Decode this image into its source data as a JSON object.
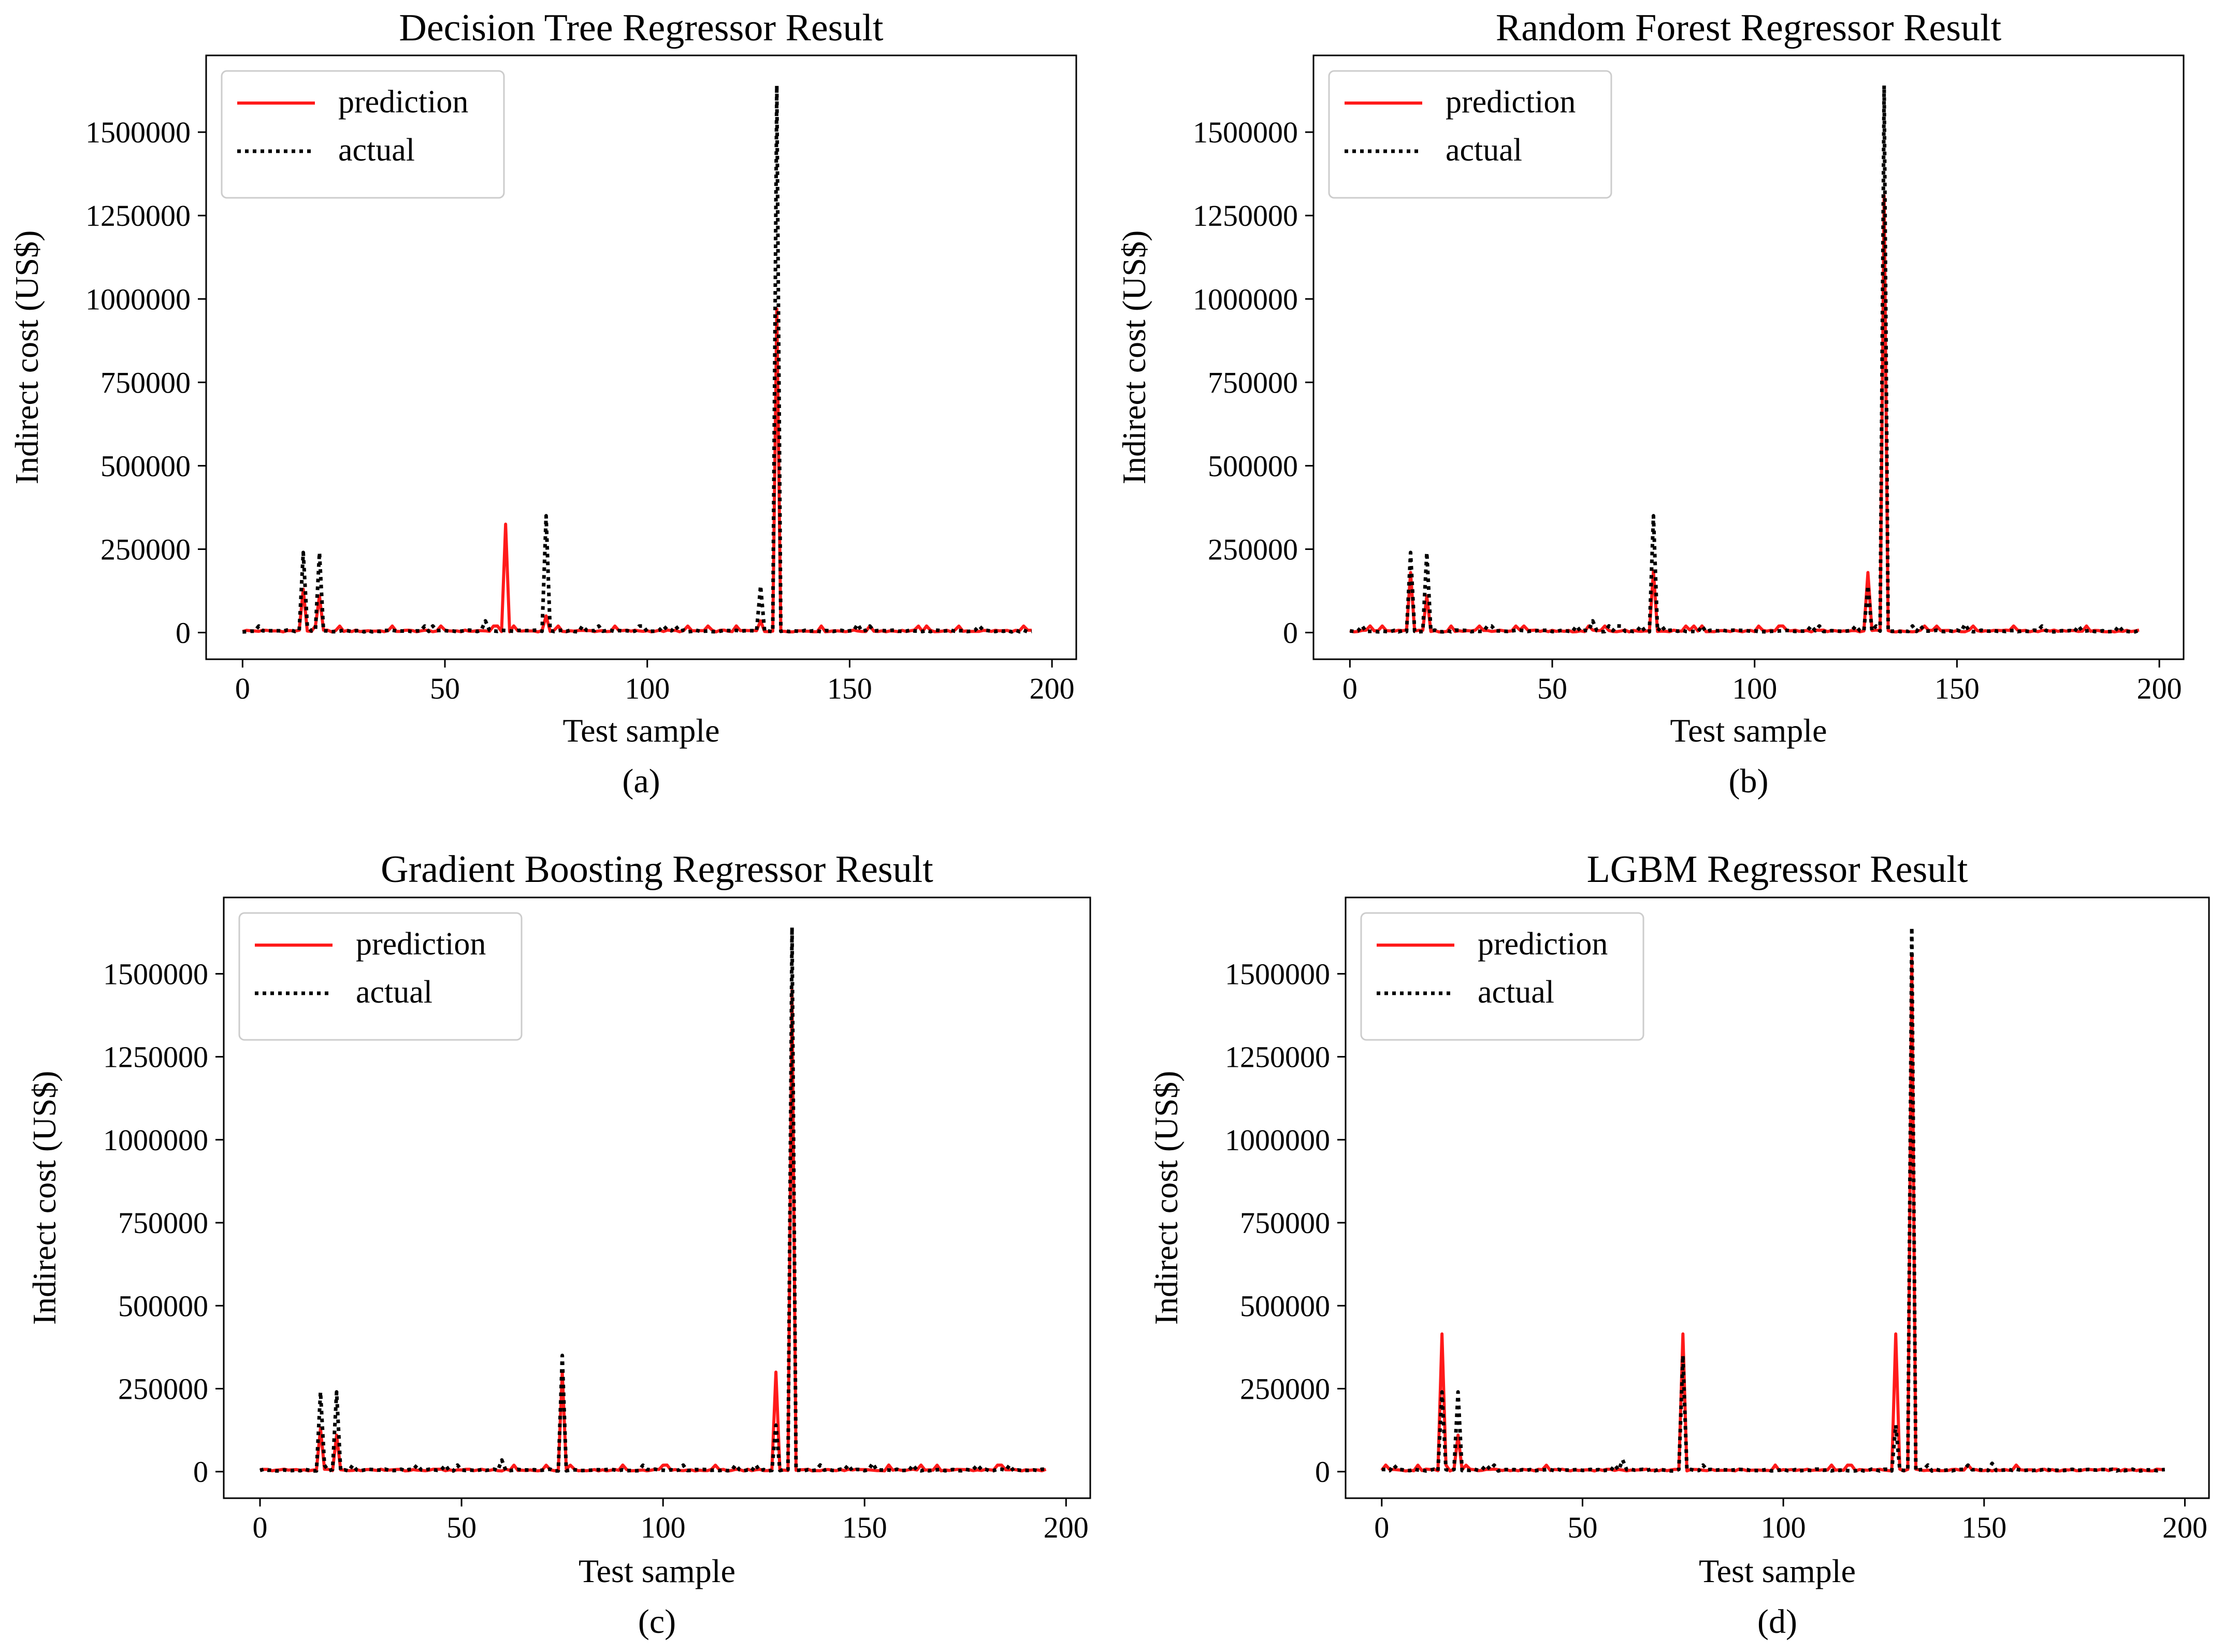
{
  "figure": {
    "panels_order": [
      "a",
      "b",
      "c",
      "d"
    ]
  },
  "chart_data": [
    {
      "panel": "(a)",
      "type": "line",
      "title": "Decision Tree Regressor Result",
      "xlabel": "Test sample",
      "ylabel": "Indirect cost (US$)",
      "xlim": [
        -9,
        206
      ],
      "ylim": [
        -80000,
        1730000
      ],
      "xticks": [
        0,
        50,
        100,
        150,
        200
      ],
      "yticks": [
        0,
        250000,
        500000,
        750000,
        1000000,
        1250000,
        1500000
      ],
      "legend": {
        "position": "top-left",
        "entries": [
          "prediction",
          "actual"
        ]
      },
      "colors": {
        "prediction": "#ff1a1a",
        "actual": "#000000"
      },
      "series": [
        {
          "name": "prediction",
          "color": "#ff1a1a",
          "style": "solid",
          "peaks": [
            [
              15,
              130000
            ],
            [
              19,
              110000
            ],
            [
              65,
              325000
            ],
            [
              75,
              50000
            ],
            [
              128,
              35000
            ],
            [
              132,
              970000
            ]
          ]
        },
        {
          "name": "actual",
          "color": "#000000",
          "style": "dotted",
          "peaks": [
            [
              15,
              240000
            ],
            [
              19,
              240000
            ],
            [
              60,
              35000
            ],
            [
              75,
              350000
            ],
            [
              128,
              140000
            ],
            [
              132,
              1640000
            ],
            [
              152,
              25000
            ]
          ]
        }
      ]
    },
    {
      "panel": "(b)",
      "type": "line",
      "title": "Random Forest Regressor Result",
      "xlabel": "Test sample",
      "ylabel": "Indirect cost (US$)",
      "xlim": [
        -9,
        206
      ],
      "ylim": [
        -80000,
        1730000
      ],
      "xticks": [
        0,
        50,
        100,
        150,
        200
      ],
      "yticks": [
        0,
        250000,
        500000,
        750000,
        1000000,
        1250000,
        1500000
      ],
      "legend": {
        "position": "top-left",
        "entries": [
          "prediction",
          "actual"
        ]
      },
      "colors": {
        "prediction": "#ff1a1a",
        "actual": "#000000"
      },
      "series": [
        {
          "name": "prediction",
          "color": "#ff1a1a",
          "style": "solid",
          "peaks": [
            [
              15,
              180000
            ],
            [
              19,
              110000
            ],
            [
              75,
              185000
            ],
            [
              128,
              180000
            ],
            [
              132,
              1310000
            ]
          ]
        },
        {
          "name": "actual",
          "color": "#000000",
          "style": "dotted",
          "peaks": [
            [
              15,
              240000
            ],
            [
              19,
              240000
            ],
            [
              60,
              35000
            ],
            [
              75,
              350000
            ],
            [
              128,
              140000
            ],
            [
              132,
              1640000
            ],
            [
              152,
              25000
            ]
          ]
        }
      ]
    },
    {
      "panel": "(c)",
      "type": "line",
      "title": "Gradient Boosting Regressor Result",
      "xlabel": "Test sample",
      "ylabel": "Indirect cost (US$)",
      "xlim": [
        -9,
        206
      ],
      "ylim": [
        -80000,
        1730000
      ],
      "xticks": [
        0,
        50,
        100,
        150,
        200
      ],
      "yticks": [
        0,
        250000,
        500000,
        750000,
        1000000,
        1250000,
        1500000
      ],
      "legend": {
        "position": "top-left",
        "entries": [
          "prediction",
          "actual"
        ]
      },
      "colors": {
        "prediction": "#ff1a1a",
        "actual": "#000000"
      },
      "series": [
        {
          "name": "prediction",
          "color": "#ff1a1a",
          "style": "solid",
          "peaks": [
            [
              15,
              130000
            ],
            [
              19,
              110000
            ],
            [
              75,
              300000
            ],
            [
              128,
              300000
            ],
            [
              132,
              1450000
            ]
          ]
        },
        {
          "name": "actual",
          "color": "#000000",
          "style": "dotted",
          "peaks": [
            [
              15,
              240000
            ],
            [
              19,
              240000
            ],
            [
              60,
              35000
            ],
            [
              75,
              350000
            ],
            [
              128,
              140000
            ],
            [
              132,
              1640000
            ],
            [
              152,
              25000
            ]
          ]
        }
      ]
    },
    {
      "panel": "(d)",
      "type": "line",
      "title": "LGBM Regressor Result",
      "xlabel": "Test sample",
      "ylabel": "Indirect cost (US$)",
      "xlim": [
        -9,
        206
      ],
      "ylim": [
        -80000,
        1730000
      ],
      "xticks": [
        0,
        50,
        100,
        150,
        200
      ],
      "yticks": [
        0,
        250000,
        500000,
        750000,
        1000000,
        1250000,
        1500000
      ],
      "legend": {
        "position": "top-left",
        "entries": [
          "prediction",
          "actual"
        ]
      },
      "colors": {
        "prediction": "#ff1a1a",
        "actual": "#000000"
      },
      "series": [
        {
          "name": "prediction",
          "color": "#ff1a1a",
          "style": "solid",
          "peaks": [
            [
              15,
              415000
            ],
            [
              19,
              110000
            ],
            [
              75,
              415000
            ],
            [
              128,
              415000
            ],
            [
              132,
              1550000
            ]
          ]
        },
        {
          "name": "actual",
          "color": "#000000",
          "style": "dotted",
          "peaks": [
            [
              15,
              240000
            ],
            [
              19,
              240000
            ],
            [
              60,
              35000
            ],
            [
              75,
              350000
            ],
            [
              128,
              140000
            ],
            [
              132,
              1640000
            ],
            [
              152,
              25000
            ]
          ]
        }
      ]
    }
  ]
}
